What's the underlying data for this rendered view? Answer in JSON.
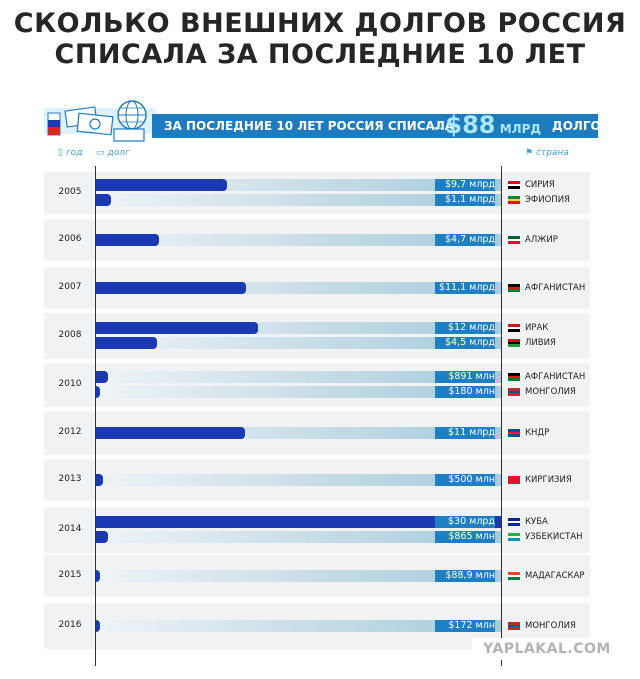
{
  "title_line1": "СКОЛЬКО ВНЕШНИХ ДОЛГОВ РОССИЯ",
  "title_line2": "СПИСАЛА ЗА ПОСЛЕДНИЕ 10 ЛЕТ",
  "banner": {
    "text": "ЗА ПОСЛЕДНИЕ 10 ЛЕТ РОССИЯ СПИСАЛА",
    "tilde": "~",
    "amount": "$88",
    "unit": " МЛРД",
    "tail": "ДОЛГОВ"
  },
  "legend": {
    "year": "год",
    "debt": "долг",
    "country": "страна"
  },
  "watermark": "YAPLAKAL.COM",
  "colors": {
    "bar": "#1c39b4",
    "label": "#1d80c4",
    "banner": "#1d7cc0",
    "accent": "#a9e8ff"
  },
  "chart_data": {
    "type": "bar",
    "orientation": "horizontal",
    "scale_max_usd_bn": 30,
    "groups": [
      {
        "year": "2005",
        "items": [
          {
            "value_usd_bn": 9.7,
            "label": "$9,7 млрд",
            "country": "СИРИЯ",
            "flag": [
              "#ce1126",
              "#ffffff",
              "#000000"
            ]
          },
          {
            "value_usd_bn": 1.1,
            "label": "$1,1 млрд",
            "country": "ЭФИОПИЯ",
            "flag": [
              "#078930",
              "#fcdd09",
              "#da121a"
            ]
          }
        ]
      },
      {
        "year": "2006",
        "items": [
          {
            "value_usd_bn": 4.7,
            "label": "$4,7 млрд",
            "country": "АЛЖИР",
            "flag": [
              "#006233",
              "#ffffff",
              "#d21034"
            ]
          }
        ]
      },
      {
        "year": "2007",
        "items": [
          {
            "value_usd_bn": 11.1,
            "label": "$11,1 млрд",
            "country": "АФГАНИСТАН",
            "flag": [
              "#000000",
              "#d32011",
              "#007a36"
            ]
          }
        ]
      },
      {
        "year": "2008",
        "items": [
          {
            "value_usd_bn": 12,
            "label": "$12 млрд",
            "country": "ИРАК",
            "flag": [
              "#ce1126",
              "#ffffff",
              "#000000"
            ]
          },
          {
            "value_usd_bn": 4.5,
            "label": "$4,5 млрд",
            "country": "ЛИВИЯ",
            "flag": [
              "#e70013",
              "#000000",
              "#239e46"
            ]
          }
        ]
      },
      {
        "year": "2010",
        "items": [
          {
            "value_usd_bn": 0.891,
            "label": "$891 млн",
            "country": "АФГАНИСТАН",
            "flag": [
              "#000000",
              "#d32011",
              "#007a36"
            ]
          },
          {
            "value_usd_bn": 0.18,
            "label": "$180 млн",
            "country": "МОНГОЛИЯ",
            "flag": [
              "#c4272f",
              "#015197",
              "#c4272f"
            ]
          }
        ]
      },
      {
        "year": "2012",
        "items": [
          {
            "value_usd_bn": 11,
            "label": "$11 млрд",
            "country": "КНДР",
            "flag": [
              "#024fa2",
              "#ed1c27",
              "#024fa2"
            ]
          }
        ]
      },
      {
        "year": "2013",
        "items": [
          {
            "value_usd_bn": 0.5,
            "label": "$500 млн",
            "country": "КИРГИЗИЯ",
            "flag": [
              "#e8112d",
              "#e8112d",
              "#e8112d"
            ]
          }
        ]
      },
      {
        "year": "2014",
        "items": [
          {
            "value_usd_bn": 30,
            "label": "$30 млрд",
            "country": "КУБА",
            "flag": [
              "#002a8f",
              "#ffffff",
              "#002a8f"
            ]
          },
          {
            "value_usd_bn": 0.865,
            "label": "$865 млн",
            "country": "УЗБЕКИСТАН",
            "flag": [
              "#1eb53a",
              "#ffffff",
              "#0099b5"
            ]
          }
        ]
      },
      {
        "year": "2015",
        "items": [
          {
            "value_usd_bn": 0.0889,
            "label": "$88,9 млн",
            "country": "МАДАГАСКАР",
            "flag": [
              "#fc3d32",
              "#ffffff",
              "#007e3a"
            ]
          }
        ]
      },
      {
        "year": "2016",
        "items": [
          {
            "value_usd_bn": 0.172,
            "label": "$172 млн",
            "country": "МОНГОЛИЯ",
            "flag": [
              "#c4272f",
              "#015197",
              "#c4272f"
            ]
          }
        ]
      }
    ]
  }
}
